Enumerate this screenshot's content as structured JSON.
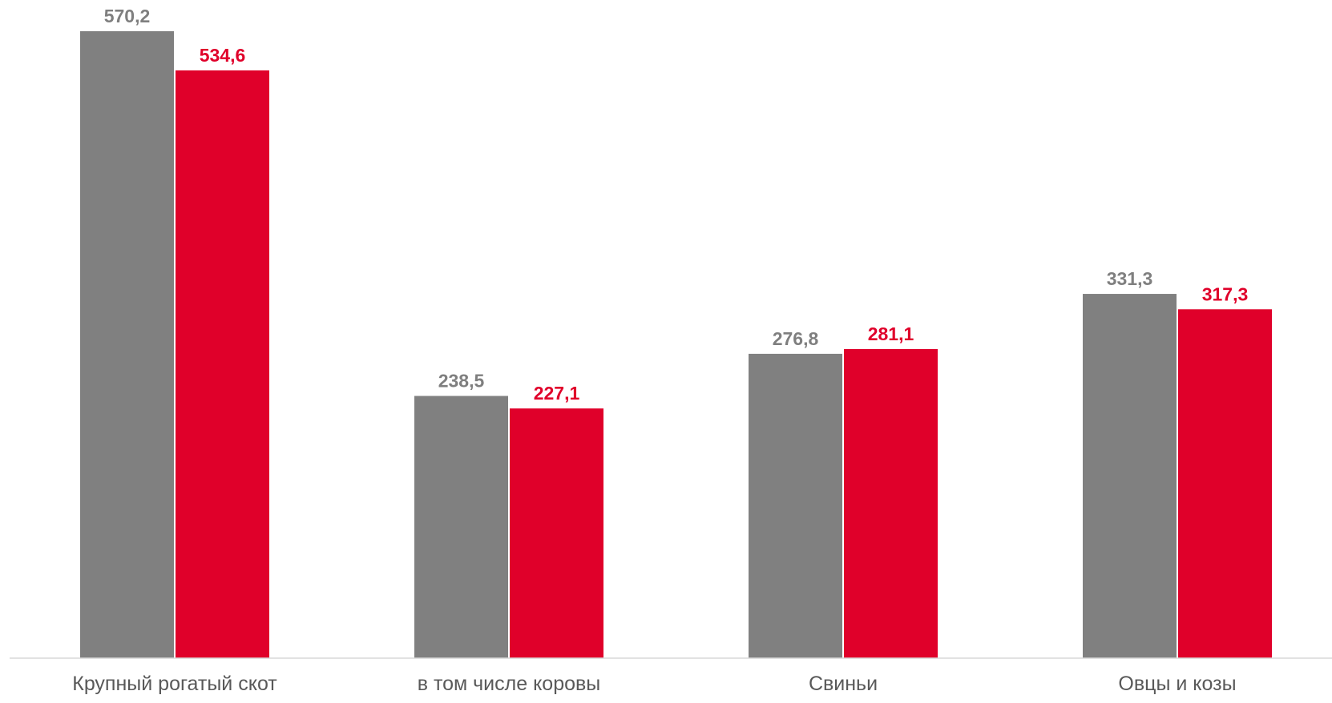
{
  "chart_data": {
    "type": "bar",
    "categories": [
      "Крупный рогатый скот",
      "в том числе коровы",
      "Свиньи",
      "Овцы и козы"
    ],
    "series": [
      {
        "values": [
          570.2,
          238.5,
          276.8,
          331.3
        ],
        "labels": [
          "570,2",
          "238,5",
          "276,8",
          "331,3"
        ],
        "color": "#808080"
      },
      {
        "values": [
          534.6,
          227.1,
          281.1,
          317.3
        ],
        "labels": [
          "534,6",
          "227,1",
          "281,1",
          "317,3"
        ],
        "color": "#e0002a"
      }
    ],
    "title": "",
    "xlabel": "",
    "ylabel": "",
    "ylim": [
      0,
      600
    ],
    "grid": false,
    "legend": "none",
    "axis_color": "#d9d9d9"
  }
}
